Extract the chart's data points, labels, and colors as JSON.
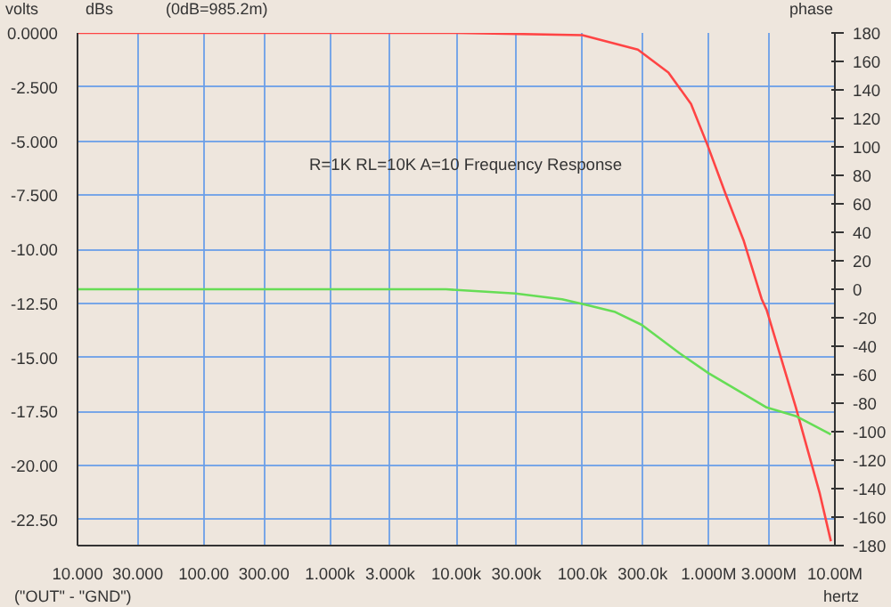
{
  "chart_data": {
    "type": "line",
    "ylabel": "volts",
    "y2label": "phase",
    "xlabel": "hertz",
    "annotations": [
      "dBs",
      "(0dB=985.2m)",
      "R=1K RL=10K A=10 Frequency Response",
      "(\"OUT\" - \"GND\")"
    ],
    "log": "x",
    "grid": true,
    "marker": "none",
    "line_style": "solid",
    "xlim": [
      10,
      10000000
    ],
    "xticks": [
      {
        "value": 10,
        "label": "10.000"
      },
      {
        "value": 30,
        "label": "30.000"
      },
      {
        "value": 100,
        "label": "100.00"
      },
      {
        "value": 300,
        "label": "300.00"
      },
      {
        "value": 1000,
        "label": "1.000k"
      },
      {
        "value": 3000,
        "label": "3.000k"
      },
      {
        "value": 10000,
        "label": "10.00k"
      },
      {
        "value": 30000,
        "label": "30.00k"
      },
      {
        "value": 100000,
        "label": "100.0k"
      },
      {
        "value": 300000,
        "label": "300.0k"
      },
      {
        "value": 1000000,
        "label": "1.000M"
      },
      {
        "value": 3000000,
        "label": "3.000M"
      },
      {
        "value": 10000000,
        "label": "10.00M"
      }
    ],
    "ylim": [
      -23.7,
      0
    ],
    "yticks": [
      {
        "value": 0,
        "label": "0.0000"
      },
      {
        "value": -2.5,
        "label": "-2.500"
      },
      {
        "value": -5,
        "label": "-5.000"
      },
      {
        "value": -7.5,
        "label": "-7.500"
      },
      {
        "value": -10,
        "label": "-10.00"
      },
      {
        "value": -12.5,
        "label": "-12.50"
      },
      {
        "value": -15,
        "label": "-15.00"
      },
      {
        "value": -17.5,
        "label": "-17.50"
      },
      {
        "value": -20,
        "label": "-20.00"
      },
      {
        "value": -22.5,
        "label": "-22.50"
      }
    ],
    "y2lim": [
      -180,
      180
    ],
    "y2ticks": [
      180,
      160,
      140,
      120,
      100,
      80,
      60,
      40,
      20,
      0,
      -20,
      -40,
      -60,
      -80,
      -100,
      -120,
      -140,
      -160,
      -180
    ],
    "series": [
      {
        "color": "#ff4444",
        "x": [
          10,
          1000,
          10000,
          100000,
          275000,
          480000,
          725000,
          980000,
          1380000,
          1900000,
          2630000,
          2880000,
          4900000,
          7600000,
          9300000
        ],
        "values": [
          0,
          0,
          0,
          -0.1,
          -0.77,
          -1.83,
          -3.28,
          -5.19,
          -7.53,
          -9.62,
          -12.3,
          -12.8,
          -17.3,
          -21.3,
          -23.5
        ]
      },
      {
        "color": "#66dd55",
        "axis": "y2",
        "x": [
          10,
          1000,
          8300,
          29500,
          69000,
          107000,
          182000,
          295000,
          590000,
          1000000,
          1700000,
          2880000,
          4900000,
          9300000
        ],
        "values": [
          0,
          0,
          0,
          -3,
          -7,
          -11,
          -16,
          -25,
          -45,
          -59,
          -71,
          -83,
          -89,
          -102
        ]
      }
    ]
  }
}
